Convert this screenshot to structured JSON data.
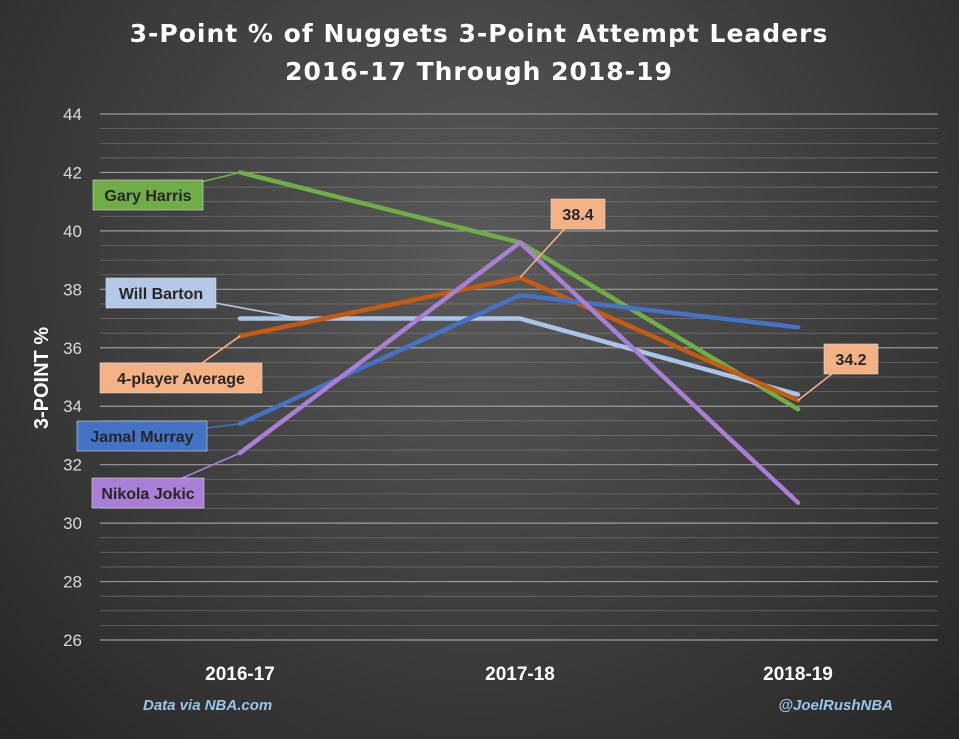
{
  "chart_data": {
    "type": "line",
    "title_lines": [
      "3-Point % of Nuggets 3-Point Attempt Leaders",
      "2016-17 Through 2018-19"
    ],
    "ylabel": "3-POINT %",
    "xlabel": "",
    "categories": [
      "2016-17",
      "2017-18",
      "2018-19"
    ],
    "ylim": [
      26,
      44
    ],
    "yticks": [
      26,
      28,
      30,
      32,
      34,
      36,
      38,
      40,
      42,
      44
    ],
    "minor_gridlines": true,
    "series": [
      {
        "name": "Gary Harris",
        "color": "#70ad47",
        "values": [
          42.0,
          39.6,
          33.9
        ]
      },
      {
        "name": "Will Barton",
        "color": "#a9c4e8",
        "values": [
          37.0,
          37.0,
          34.4
        ]
      },
      {
        "name": "4-player Average",
        "color": "#c55a11",
        "values": [
          36.4,
          38.4,
          34.2
        ]
      },
      {
        "name": "Jamal Murray",
        "color": "#4472c4",
        "values": [
          33.4,
          37.8,
          36.7
        ]
      },
      {
        "name": "Nikola Jokic",
        "color": "#a97fd6",
        "values": [
          32.4,
          39.6,
          30.7
        ]
      }
    ],
    "data_labels": [
      {
        "series": "4-player Average",
        "index": 1,
        "text": "38.4"
      },
      {
        "series": "4-player Average",
        "index": 2,
        "text": "34.2"
      }
    ],
    "footer_left": "Data via NBA.com",
    "footer_right": "@JoelRushNBA"
  }
}
